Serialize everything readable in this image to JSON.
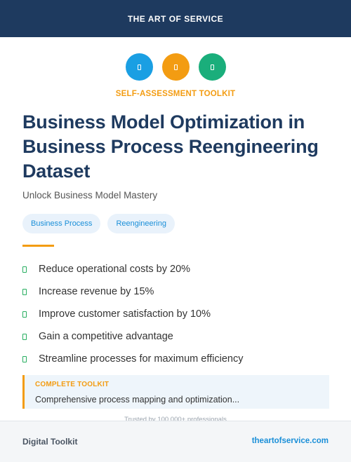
{
  "header": {
    "brand": "THE ART OF SERVICE"
  },
  "icons": [
    {
      "name": "document-icon",
      "color": "#1a9fe3"
    },
    {
      "name": "clipboard-icon",
      "color": "#f39c12"
    },
    {
      "name": "chart-icon",
      "color": "#1aae7b"
    }
  ],
  "hero": {
    "eyebrow": "SELF-ASSESSMENT TOOLKIT",
    "title": "Business Model Optimization in Business Process Reengineering Dataset",
    "subtitle": "Unlock Business Model Mastery"
  },
  "tags": [
    "Business Process",
    "Reengineering"
  ],
  "benefits": [
    "Reduce operational costs by 20%",
    "Increase revenue by 15%",
    "Improve customer satisfaction by 10%",
    "Gain a competitive advantage",
    "Streamline processes for maximum efficiency"
  ],
  "callout": {
    "label": "COMPLETE TOOLKIT",
    "text": "Comprehensive process mapping and optimization..."
  },
  "trusted": "Trusted by 100,000+ professionals",
  "footer": {
    "left": "Digital Toolkit",
    "right": "theartofservice.com"
  },
  "colors": {
    "navy": "#1e3a5f",
    "accent_orange": "#f39c12",
    "accent_blue": "#1a8fd8",
    "check_green": "#27ae60"
  }
}
